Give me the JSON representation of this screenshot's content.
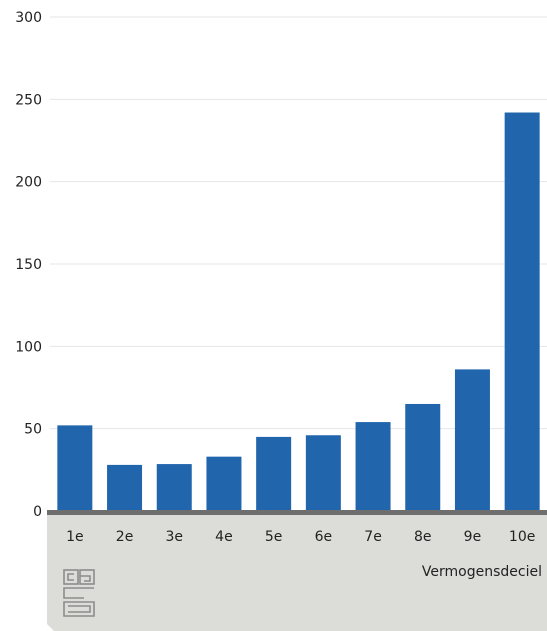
{
  "chart_data": {
    "type": "bar",
    "categories": [
      "1e",
      "2e",
      "3e",
      "4e",
      "5e",
      "6e",
      "7e",
      "8e",
      "9e",
      "10e"
    ],
    "values": [
      52,
      28,
      28.5,
      33,
      45,
      46,
      54,
      65,
      86,
      242
    ],
    "title": "",
    "xlabel": "Vermogensdeciel",
    "ylabel": "",
    "ylim": [
      0,
      300
    ],
    "yticks": [
      0,
      50,
      100,
      150,
      200,
      250,
      300
    ],
    "grid": true,
    "legend": "none",
    "colors": {
      "bar": "#2166ac",
      "axis_line": "#6e6e6e",
      "axis_band": "#dcddd9",
      "grid": "#e6e6e6",
      "logo": "#8c8c8c"
    }
  },
  "logo": {
    "icon": "cbs-logo-icon"
  }
}
